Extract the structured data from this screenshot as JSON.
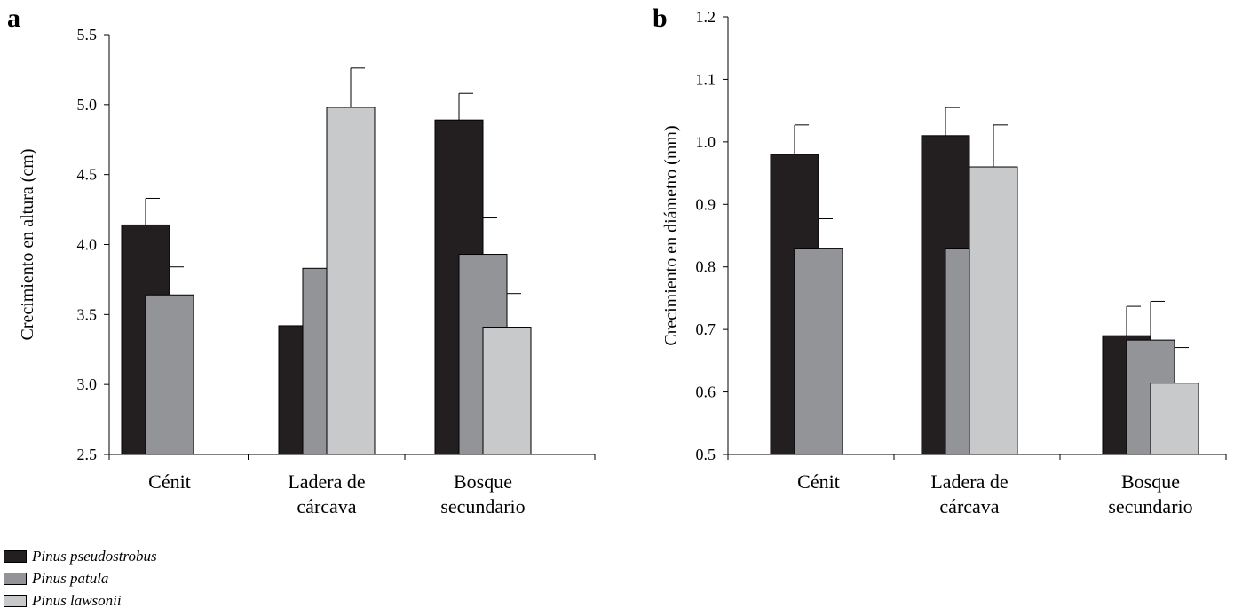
{
  "colors": {
    "Pinus pseudostrobus": "#231f20",
    "Pinus patula": "#929497",
    "Pinus lawsonii": "#c8c9cb"
  },
  "legend": [
    {
      "name": "Pinus pseudostrobus",
      "color": "#231f20"
    },
    {
      "name": "Pinus patula",
      "color": "#929497"
    },
    {
      "name": "Pinus lawsonii",
      "color": "#c8c9cb"
    }
  ],
  "chart_data": [
    {
      "panel_label": "a",
      "type": "bar",
      "ylabel": "Crecimiento en altura (cm)",
      "ylim": [
        2.5,
        5.5
      ],
      "yticks": [
        "2.5",
        "3.0",
        "3.5",
        "4.0",
        "4.5",
        "5.0",
        "5.5"
      ],
      "categories": [
        [
          "Cénit"
        ],
        [
          "Ladera de",
          "cárcava"
        ],
        [
          "Bosque",
          "secundario"
        ]
      ],
      "series": [
        {
          "name": "Pinus pseudostrobus",
          "values": [
            4.14,
            3.42,
            4.89
          ],
          "errors": [
            0.19,
            0.19,
            0.19
          ]
        },
        {
          "name": "Pinus patula",
          "values": [
            3.64,
            3.83,
            3.93
          ],
          "errors": [
            0.2,
            0.21,
            0.26
          ]
        },
        {
          "name": "Pinus lawsonii",
          "values": [
            null,
            4.98,
            3.41
          ],
          "errors": [
            null,
            0.28,
            0.24
          ]
        }
      ],
      "grid": false
    },
    {
      "panel_label": "b",
      "type": "bar",
      "ylabel": "Crecimiento en diámetro (mm)",
      "ylim": [
        0.5,
        1.2
      ],
      "yticks": [
        "0.5",
        "0.6",
        "0.7",
        "0.8",
        "0.9",
        "1.0",
        "1.1",
        "1.2"
      ],
      "categories": [
        [
          "Cénit"
        ],
        [
          "Ladera de",
          "cárcava"
        ],
        [
          "Bosque",
          "secundario"
        ]
      ],
      "series": [
        {
          "name": "Pinus pseudostrobus",
          "values": [
            0.98,
            1.01,
            0.69
          ],
          "errors": [
            0.047,
            0.045,
            0.047
          ]
        },
        {
          "name": "Pinus patula",
          "values": [
            0.83,
            0.83,
            0.683
          ],
          "errors": [
            0.047,
            0.0,
            0.062
          ]
        },
        {
          "name": "Pinus lawsonii",
          "values": [
            null,
            0.96,
            0.614
          ],
          "errors": [
            null,
            0.067,
            0.057
          ]
        }
      ],
      "grid": false
    }
  ]
}
